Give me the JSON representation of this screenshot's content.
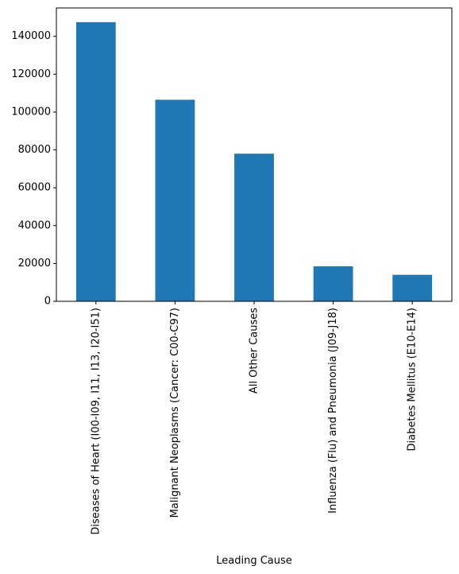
{
  "chart_data": {
    "type": "bar",
    "title": "",
    "xlabel": "Leading Cause",
    "ylabel": "",
    "categories": [
      "Diseases of Heart (I00-I09, I11, I13, I20-I51)",
      "Malignant Neoplasms (Cancer: C00-C97)",
      "All Other Causes",
      "Influenza (Flu) and Pneumonia (J09-J18)",
      "Diabetes Mellitus (E10-E14)"
    ],
    "values": [
      147500,
      106500,
      78000,
      18500,
      14000
    ],
    "ylim": [
      0,
      155000
    ],
    "yticks": [
      0,
      20000,
      40000,
      60000,
      80000,
      100000,
      120000,
      140000
    ],
    "bar_color": "#1f77b4",
    "grid": false,
    "legend": "none"
  }
}
